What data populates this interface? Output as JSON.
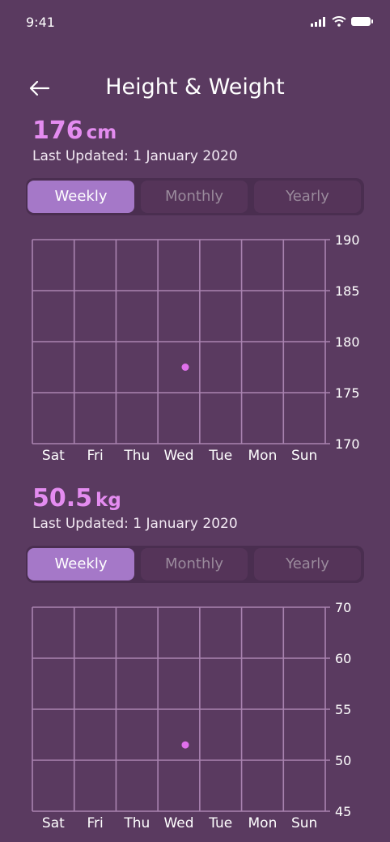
{
  "status_bar": {
    "time": "9:41"
  },
  "header": {
    "title": "Height & Weight"
  },
  "height": {
    "value": "176",
    "unit": "cm",
    "updated": "Last Updated: 1 January 2020",
    "tabs": [
      "Weekly",
      "Monthly",
      "Yearly"
    ],
    "active_tab": "Weekly"
  },
  "weight": {
    "value": "50.5",
    "unit": "kg",
    "updated": "Last Updated: 1 January 2020",
    "tabs": [
      "Weekly",
      "Monthly",
      "Yearly"
    ],
    "active_tab": "Weekly"
  },
  "chart_data": [
    {
      "type": "scatter",
      "categories": [
        "Sat",
        "Fri",
        "Thu",
        "Wed",
        "Tue",
        "Mon",
        "Sun"
      ],
      "yticks": [
        190,
        185,
        180,
        175,
        170
      ],
      "ylim": [
        170,
        190
      ],
      "points": [
        {
          "x": "Wed",
          "y": 177.5
        }
      ],
      "grid": true,
      "color": "#e070ec"
    },
    {
      "type": "scatter",
      "categories": [
        "Sat",
        "Fri",
        "Thu",
        "Wed",
        "Tue",
        "Mon",
        "Sun"
      ],
      "yticks": [
        70,
        60,
        55,
        50,
        45
      ],
      "ylim": [
        45,
        70
      ],
      "points": [
        {
          "x": "Wed",
          "y": 51.5
        }
      ],
      "grid": true,
      "color": "#e070ec"
    }
  ]
}
